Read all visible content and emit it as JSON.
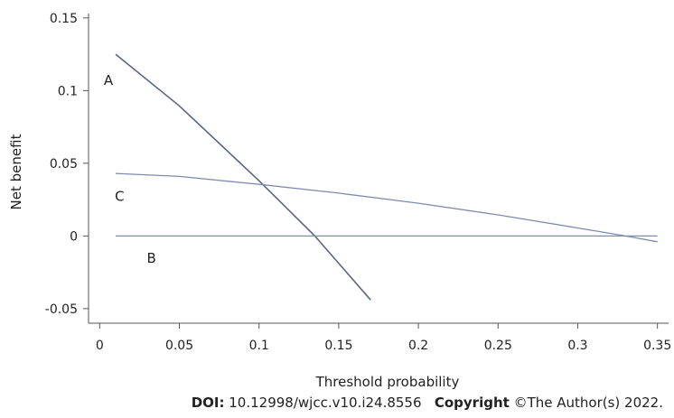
{
  "chart_data": {
    "type": "line",
    "xlabel": "Threshold probability",
    "ylabel": "Net benefit",
    "xlim": [
      -0.007,
      0.357
    ],
    "ylim": [
      -0.06,
      0.153
    ],
    "xticks": [
      0,
      0.05,
      0.1,
      0.15,
      0.2,
      0.25,
      0.3,
      0.35
    ],
    "xtick_labels": [
      "0",
      "0.05",
      "0.1",
      "0.15",
      "0.2",
      "0.25",
      "0.3",
      "0.35"
    ],
    "yticks": [
      -0.05,
      0,
      0.05,
      0.1,
      0.15
    ],
    "ytick_labels": [
      "-0.05",
      "0",
      "0.05",
      "0.1",
      "0.15"
    ],
    "grid": false,
    "series": [
      {
        "name": "A",
        "color": "#5a6585",
        "x": [
          0.01,
          0.05,
          0.1,
          0.135,
          0.17
        ],
        "y": [
          0.125,
          0.0895,
          0.038,
          0.0,
          -0.044
        ]
      },
      {
        "name": "B",
        "color": "#7f8cb0",
        "x": [
          0.01,
          0.35
        ],
        "y": [
          0.0,
          0.0
        ]
      },
      {
        "name": "C",
        "color": "#7f8cb0",
        "x": [
          0.01,
          0.05,
          0.1,
          0.15,
          0.2,
          0.25,
          0.3,
          0.33,
          0.35
        ],
        "y": [
          0.043,
          0.041,
          0.0355,
          0.0295,
          0.0225,
          0.0145,
          0.0055,
          0.0,
          -0.004
        ]
      }
    ],
    "labels": [
      {
        "text": "A",
        "x": 0.0055,
        "y": 0.104
      },
      {
        "text": "C",
        "x": 0.0125,
        "y": 0.024
      },
      {
        "text": "B",
        "x": 0.0325,
        "y": -0.0185
      }
    ]
  },
  "footer": {
    "doi_label": "DOI:",
    "doi_value": "10.12998/wjcc.v10.i24.8556",
    "copyright_label": "Copyright",
    "copyright_value": "©The Author(s) 2022."
  }
}
